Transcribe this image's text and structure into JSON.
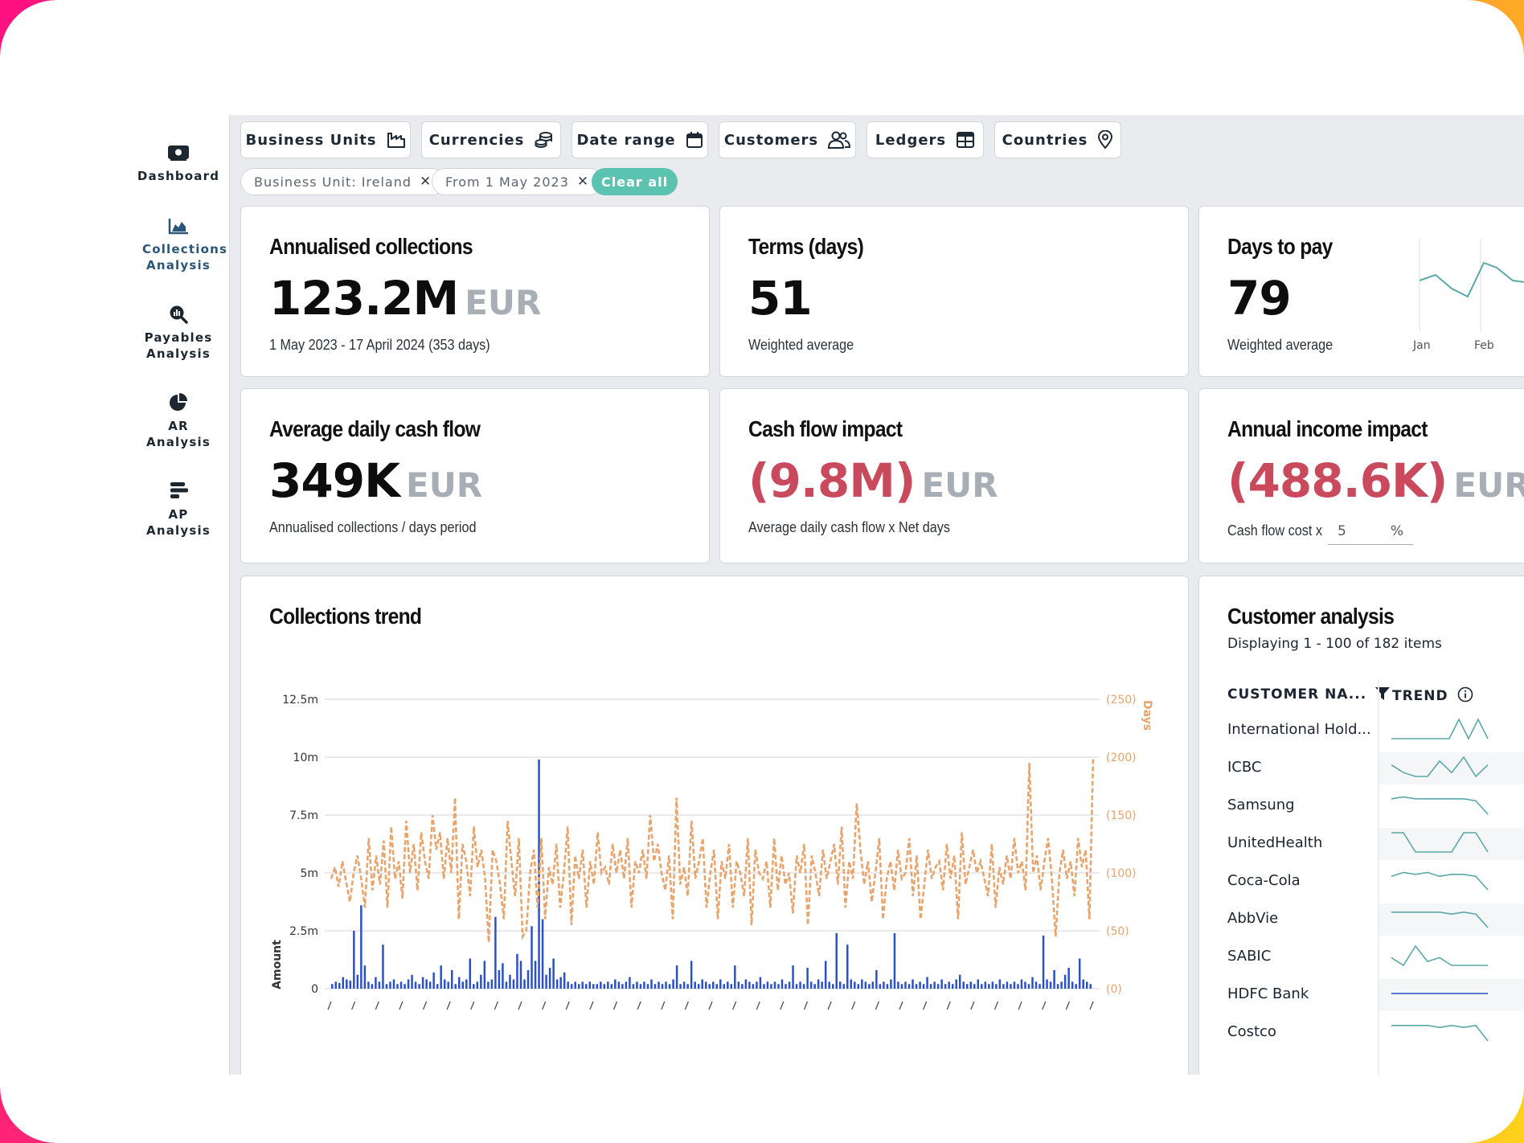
{
  "sidebar": {
    "items": [
      {
        "label": "Dashboard",
        "icon": "dashboard-icon"
      },
      {
        "label": "Collections Analysis",
        "icon": "area-chart-icon",
        "active": true
      },
      {
        "label": "Payables Analysis",
        "icon": "magnify-chart-icon"
      },
      {
        "label": "AR Analysis",
        "icon": "pie-chart-icon"
      },
      {
        "label": "AP Analysis",
        "icon": "bar-list-icon"
      }
    ]
  },
  "filters": {
    "buttons": [
      "Business Units",
      "Currencies",
      "Date range",
      "Customers",
      "Ledgers",
      "Countries"
    ],
    "chips": [
      "Business Unit: Ireland",
      "From 1 May 2023"
    ],
    "clear_label": "Clear all"
  },
  "kpis": {
    "annualised": {
      "title": "Annualised collections",
      "value": "123.2M",
      "unit": "EUR",
      "sub": "1 May 2023 - 17 April 2024 (353 days)"
    },
    "terms": {
      "title": "Terms (days)",
      "value": "51",
      "sub": "Weighted average"
    },
    "days_to_pay": {
      "title": "Days to pay",
      "value": "79",
      "sub": "Weighted average",
      "axis": [
        "Jan",
        "Feb"
      ]
    },
    "avg_daily": {
      "title": "Average daily cash flow",
      "value": "349K",
      "unit": "EUR",
      "sub": "Annualised collections / days period"
    },
    "cash_impact": {
      "title": "Cash flow impact",
      "value": "(9.8M)",
      "unit": "EUR",
      "sub": "Average daily cash flow x Net days"
    },
    "income_impact": {
      "title": "Annual income impact",
      "value": "(488.6K)",
      "unit": "EUR",
      "sub": "Cash flow cost x",
      "input_value": "5",
      "input_unit": "%"
    }
  },
  "trend": {
    "title": "Collections trend"
  },
  "customers": {
    "title": "Customer analysis",
    "displaying": "Displaying 1 - 100 of 182 items",
    "col_name": "CUSTOMER NA...",
    "col_trend": "TREND",
    "rows": [
      "International Hold...",
      "ICBC",
      "Samsung",
      "UnitedHealth",
      "Coca-Cola",
      "AbbVie",
      "SABIC",
      "HDFC Bank",
      "Costco"
    ]
  },
  "colors": {
    "amount": "#2a4fc6",
    "days": "#e8a46d",
    "negative": "#c94a5c",
    "accent": "#5cc3b1"
  },
  "chart_data": {
    "type": "bar",
    "title": "Collections trend",
    "xlabel": "",
    "ylabel": "Amount",
    "y2label": "Days",
    "ylim": [
      0,
      12500000
    ],
    "y2lim": [
      0,
      250
    ],
    "yticks": [
      "0",
      "2.5m",
      "5m",
      "7.5m",
      "10m",
      "12.5m"
    ],
    "y2ticks": [
      "(0)",
      "(50)",
      "(100)",
      "(150)",
      "(200)",
      "(250)"
    ],
    "series": [
      {
        "name": "Amount",
        "kind": "bar",
        "values": [
          0.2,
          0.3,
          0.25,
          0.5,
          0.4,
          0.35,
          2.5,
          0.6,
          3.6,
          1.0,
          0.3,
          0.2,
          0.5,
          0.3,
          1.9,
          0.2,
          0.3,
          0.4,
          0.2,
          0.3,
          0.2,
          0.4,
          0.6,
          0.3,
          0.2,
          0.5,
          0.4,
          0.3,
          0.7,
          0.2,
          1.0,
          0.4,
          0.3,
          0.8,
          0.2,
          0.5,
          0.3,
          0.4,
          1.3,
          0.2,
          0.3,
          0.6,
          1.2,
          0.3,
          0.4,
          3.1,
          0.8,
          1.1,
          0.3,
          0.6,
          0.4,
          1.5,
          1.2,
          0.4,
          0.8,
          2.7,
          1.2,
          9.9,
          3.0,
          0.6,
          0.9,
          1.3,
          0.4,
          0.5,
          0.7,
          0.3,
          0.2,
          0.3,
          0.2,
          0.3,
          0.2,
          0.3,
          0.2,
          0.2,
          0.3,
          0.2,
          0.3,
          0.2,
          0.4,
          0.3,
          0.2,
          0.3,
          0.5,
          0.2,
          0.3,
          0.2,
          0.3,
          0.2,
          0.4,
          0.2,
          0.3,
          0.2,
          0.3,
          0.2,
          0.4,
          1.0,
          0.2,
          0.3,
          0.2,
          1.2,
          0.3,
          0.2,
          0.4,
          0.3,
          0.2,
          0.3,
          0.2,
          0.4,
          0.2,
          0.3,
          0.2,
          1.0,
          0.3,
          0.2,
          0.4,
          0.3,
          0.2,
          0.3,
          0.5,
          0.2,
          0.3,
          0.2,
          0.3,
          0.2,
          0.4,
          0.2,
          0.3,
          1.0,
          0.2,
          0.3,
          0.2,
          0.9,
          0.3,
          0.2,
          0.4,
          0.3,
          1.2,
          0.3,
          0.2,
          2.4,
          0.3,
          0.2,
          1.9,
          0.4,
          0.3,
          0.2,
          0.4,
          0.3,
          0.2,
          0.3,
          0.8,
          0.2,
          0.3,
          0.2,
          0.4,
          2.4,
          0.3,
          0.2,
          0.3,
          0.2,
          0.4,
          0.2,
          0.3,
          0.2,
          0.5,
          0.2,
          0.3,
          0.2,
          0.4,
          0.2,
          0.3,
          0.2,
          0.4,
          0.6,
          0.3,
          0.2,
          0.3,
          0.2,
          0.4,
          0.2,
          0.3,
          0.2,
          0.3,
          0.2,
          0.4,
          0.2,
          0.3,
          0.2,
          0.3,
          0.2,
          0.4,
          0.3,
          0.2,
          0.5,
          0.3,
          0.2,
          2.3,
          0.4,
          0.3,
          0.8,
          0.2,
          0.3,
          0.6,
          0.9,
          0.3,
          0.2,
          1.3,
          0.4,
          0.3,
          0.2
        ]
      },
      {
        "name": "Days",
        "kind": "line",
        "values": [
          95,
          105,
          88,
          110,
          92,
          75,
          100,
          115,
          95,
          70,
          130,
          85,
          115,
          90,
          128,
          70,
          140,
          95,
          110,
          78,
          145,
          100,
          125,
          85,
          135,
          110,
          95,
          150,
          120,
          135,
          95,
          130,
          100,
          165,
          60,
          125,
          110,
          80,
          140,
          105,
          120,
          95,
          40,
          120,
          110,
          90,
          60,
          145,
          110,
          80,
          130,
          45,
          50,
          100,
          120,
          70,
          130,
          60,
          105,
          90,
          125,
          70,
          100,
          140,
          55,
          115,
          95,
          120,
          70,
          110,
          90,
          135,
          100,
          105,
          90,
          125,
          100,
          120,
          95,
          130,
          70,
          110,
          100,
          120,
          95,
          150,
          110,
          125,
          100,
          85,
          115,
          60,
          165,
          90,
          105,
          80,
          145,
          95,
          110,
          130,
          70,
          100,
          120,
          60,
          110,
          95,
          125,
          70,
          110,
          100,
          80,
          130,
          55,
          120,
          100,
          95,
          110,
          70,
          130,
          85,
          115,
          90,
          100,
          65,
          115,
          100,
          125,
          55,
          115,
          100,
          80,
          120,
          95,
          110,
          125,
          90,
          140,
          70,
          110,
          95,
          160,
          120,
          90,
          110,
          75,
          100,
          130,
          60,
          95,
          110,
          85,
          120,
          95,
          100,
          130,
          80,
          115,
          60,
          90,
          120,
          95,
          105,
          110,
          85,
          125,
          95,
          115,
          60,
          135,
          90,
          105,
          120,
          100,
          110,
          95,
          80,
          125,
          70,
          105,
          90,
          115,
          95,
          130,
          100,
          110,
          85,
          195,
          100,
          115,
          85,
          110,
          130,
          95,
          45,
          100,
          120,
          95,
          110,
          80,
          130,
          105,
          120,
          60,
          200
        ]
      }
    ]
  }
}
